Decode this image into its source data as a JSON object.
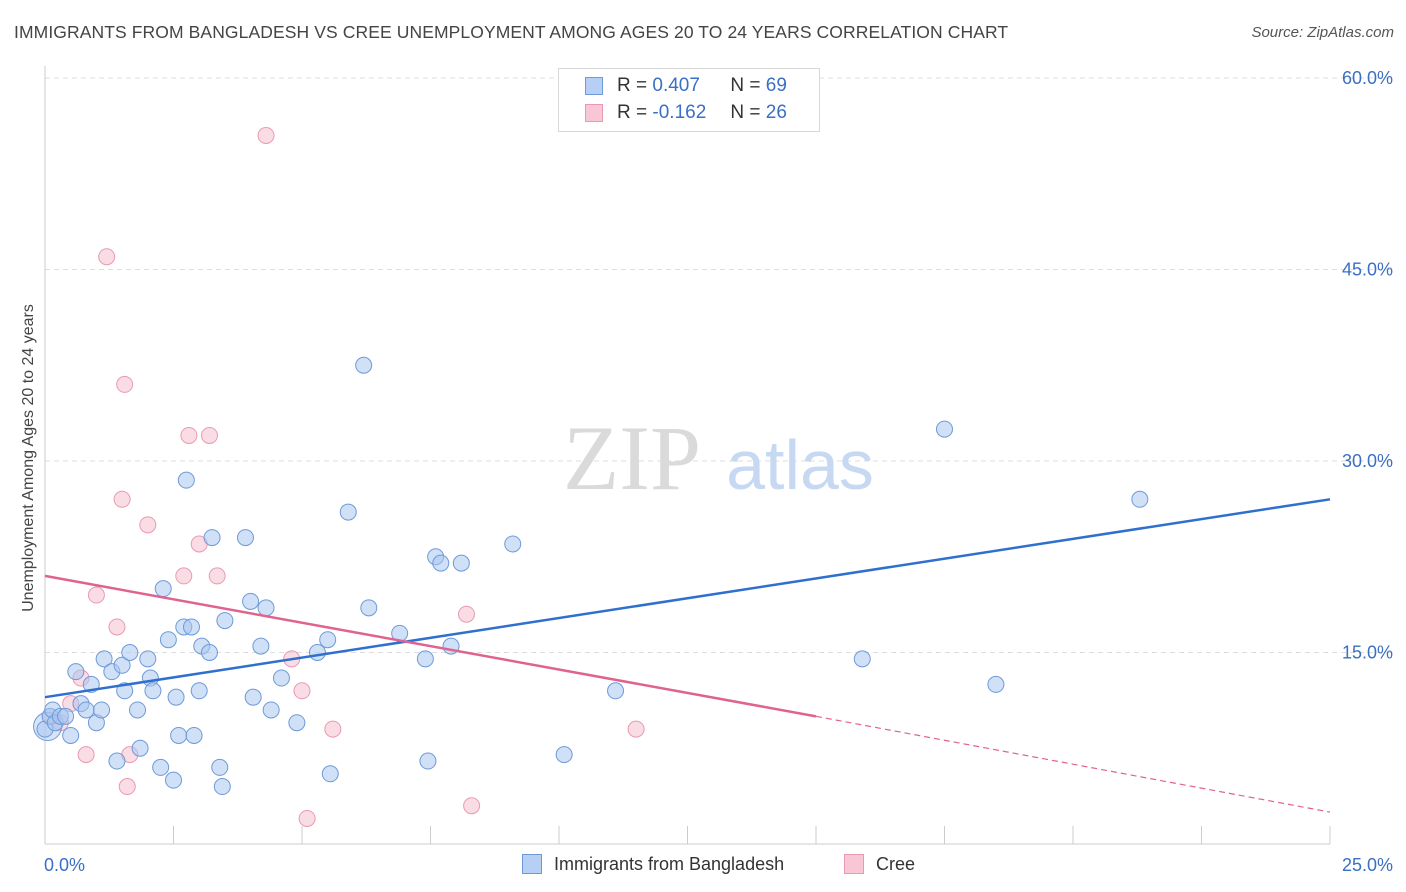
{
  "header": {
    "title": "IMMIGRANTS FROM BANGLADESH VS CREE UNEMPLOYMENT AMONG AGES 20 TO 24 YEARS CORRELATION CHART",
    "source": "Source: ZipAtlas.com"
  },
  "watermark": {
    "zip": "ZIP",
    "atlas": "atlas"
  },
  "legend": {
    "series1": {
      "r_label": "R =",
      "r_value": "0.407",
      "n_label": "N =",
      "n_value": "69"
    },
    "series2": {
      "r_label": "R =",
      "r_value": "-0.162",
      "n_label": "N =",
      "n_value": "26"
    }
  },
  "bottom_legend": {
    "series1": "Immigrants from Bangladesh",
    "series2": "Cree"
  },
  "colors": {
    "blue_fill": "#a9c6f0",
    "blue_stroke": "#6e9ad8",
    "blue_line": "#2f6fce",
    "pink_fill": "#f6c0d0",
    "pink_stroke": "#e99ab2",
    "pink_line": "#e0628e",
    "axis_text": "#3a6fc4",
    "grid": "#dddddd"
  },
  "chart_data": {
    "type": "scatter",
    "title": "IMMIGRANTS FROM BANGLADESH VS CREE UNEMPLOYMENT AMONG AGES 20 TO 24 YEARS CORRELATION CHART",
    "xlabel": "",
    "ylabel": "Unemployment Among Ages 20 to 24 years",
    "xlim": [
      0,
      25
    ],
    "ylim": [
      0,
      60
    ],
    "x_tick_labels": [
      {
        "value": 0,
        "label": "0.0%"
      },
      {
        "value": 25,
        "label": "25.0%"
      }
    ],
    "y_tick_labels": [
      {
        "value": 15,
        "label": "15.0%"
      },
      {
        "value": 30,
        "label": "30.0%"
      },
      {
        "value": 45,
        "label": "45.0%"
      },
      {
        "value": 60,
        "label": "60.0%"
      }
    ],
    "series": [
      {
        "name": "Immigrants from Bangladesh",
        "color": "blue",
        "points": [
          [
            0.0,
            9.0
          ],
          [
            0.1,
            10.0
          ],
          [
            0.15,
            10.5
          ],
          [
            0.2,
            9.5
          ],
          [
            0.3,
            10.0
          ],
          [
            0.4,
            10.0
          ],
          [
            0.5,
            8.5
          ],
          [
            0.6,
            13.5
          ],
          [
            0.7,
            11.0
          ],
          [
            0.8,
            10.5
          ],
          [
            0.9,
            12.5
          ],
          [
            1.0,
            9.5
          ],
          [
            1.1,
            10.5
          ],
          [
            1.15,
            14.5
          ],
          [
            1.3,
            13.5
          ],
          [
            1.4,
            6.5
          ],
          [
            1.5,
            14.0
          ],
          [
            1.55,
            12.0
          ],
          [
            1.65,
            15.0
          ],
          [
            1.8,
            10.5
          ],
          [
            1.85,
            7.5
          ],
          [
            2.0,
            14.5
          ],
          [
            2.05,
            13.0
          ],
          [
            2.1,
            12.0
          ],
          [
            2.25,
            6.0
          ],
          [
            2.3,
            20.0
          ],
          [
            2.4,
            16.0
          ],
          [
            2.5,
            5.0
          ],
          [
            2.55,
            11.5
          ],
          [
            2.6,
            8.5
          ],
          [
            2.7,
            17.0
          ],
          [
            2.75,
            28.5
          ],
          [
            2.85,
            17.0
          ],
          [
            2.9,
            8.5
          ],
          [
            3.0,
            12.0
          ],
          [
            3.05,
            15.5
          ],
          [
            3.2,
            15.0
          ],
          [
            3.25,
            24.0
          ],
          [
            3.4,
            6.0
          ],
          [
            3.45,
            4.5
          ],
          [
            3.5,
            17.5
          ],
          [
            3.9,
            24.0
          ],
          [
            4.0,
            19.0
          ],
          [
            4.05,
            11.5
          ],
          [
            4.2,
            15.5
          ],
          [
            4.3,
            18.5
          ],
          [
            4.4,
            10.5
          ],
          [
            4.6,
            13.0
          ],
          [
            4.9,
            9.5
          ],
          [
            5.3,
            15.0
          ],
          [
            5.5,
            16.0
          ],
          [
            5.55,
            5.5
          ],
          [
            5.9,
            26.0
          ],
          [
            6.2,
            37.5
          ],
          [
            6.3,
            18.5
          ],
          [
            6.9,
            16.5
          ],
          [
            7.4,
            14.5
          ],
          [
            7.45,
            6.5
          ],
          [
            7.6,
            22.5
          ],
          [
            7.7,
            22.0
          ],
          [
            7.9,
            15.5
          ],
          [
            8.1,
            22.0
          ],
          [
            9.1,
            23.5
          ],
          [
            10.1,
            7.0
          ],
          [
            11.1,
            12.0
          ],
          [
            15.9,
            14.5
          ],
          [
            17.5,
            32.5
          ],
          [
            18.5,
            12.5
          ],
          [
            21.3,
            27.0
          ]
        ],
        "trend_line": {
          "x": [
            0,
            25
          ],
          "y": [
            11.5,
            27.0
          ],
          "r": 0.407,
          "n": 69
        }
      },
      {
        "name": "Cree",
        "color": "pink",
        "points": [
          [
            0.1,
            10.0
          ],
          [
            0.3,
            9.5
          ],
          [
            0.5,
            11.0
          ],
          [
            0.7,
            13.0
          ],
          [
            0.8,
            7.0
          ],
          [
            1.0,
            19.5
          ],
          [
            1.2,
            46.0
          ],
          [
            1.4,
            17.0
          ],
          [
            1.5,
            27.0
          ],
          [
            1.55,
            36.0
          ],
          [
            1.6,
            4.5
          ],
          [
            1.65,
            7.0
          ],
          [
            2.0,
            25.0
          ],
          [
            2.7,
            21.0
          ],
          [
            2.8,
            32.0
          ],
          [
            3.0,
            23.5
          ],
          [
            3.2,
            32.0
          ],
          [
            3.35,
            21.0
          ],
          [
            4.3,
            55.5
          ],
          [
            4.8,
            14.5
          ],
          [
            5.0,
            12.0
          ],
          [
            5.1,
            2.0
          ],
          [
            5.6,
            9.0
          ],
          [
            8.2,
            18.0
          ],
          [
            8.3,
            3.0
          ],
          [
            11.5,
            9.0
          ]
        ],
        "trend_line": {
          "x": [
            0,
            15
          ],
          "y": [
            21.0,
            10.0
          ],
          "dashed_extension_to": [
            25,
            2.5
          ],
          "r": -0.162,
          "n": 26
        }
      }
    ]
  }
}
